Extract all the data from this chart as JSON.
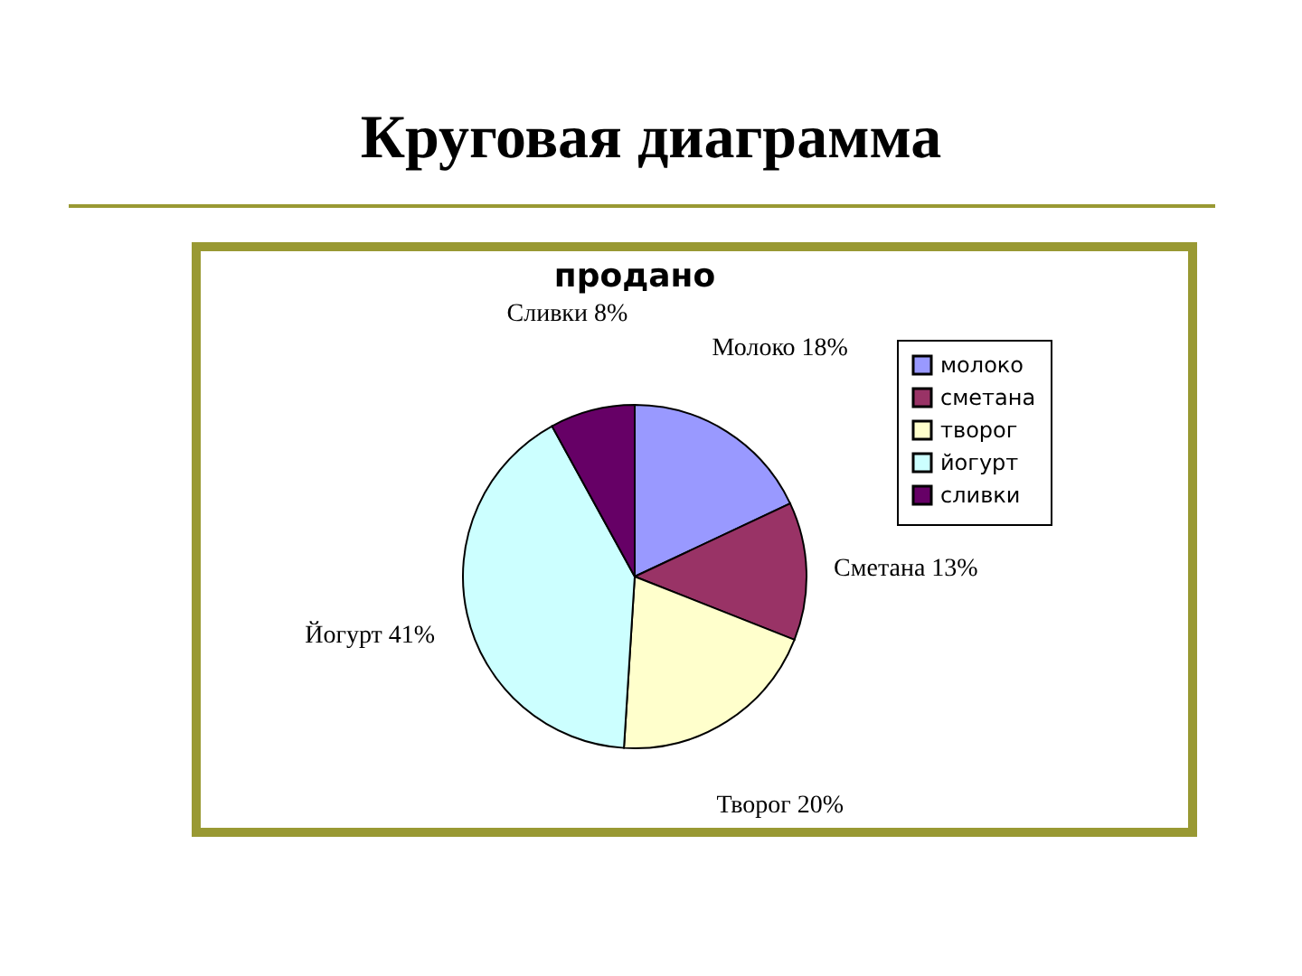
{
  "chart_data": {
    "type": "pie",
    "title": "Круговая диаграмма",
    "subtitle": "продано",
    "categories": [
      "молоко",
      "сметана",
      "творог",
      "йогурт",
      "сливки"
    ],
    "values": [
      18,
      13,
      20,
      41,
      8
    ],
    "colors": [
      "#9999ff",
      "#993366",
      "#ffffcc",
      "#ccffff",
      "#660066"
    ],
    "value_labels": [
      "Молоко 18%",
      "Сметана 13%",
      "Творог 20%",
      "Йогурт 41%",
      "Сливки 8%"
    ],
    "legend": "top right"
  }
}
